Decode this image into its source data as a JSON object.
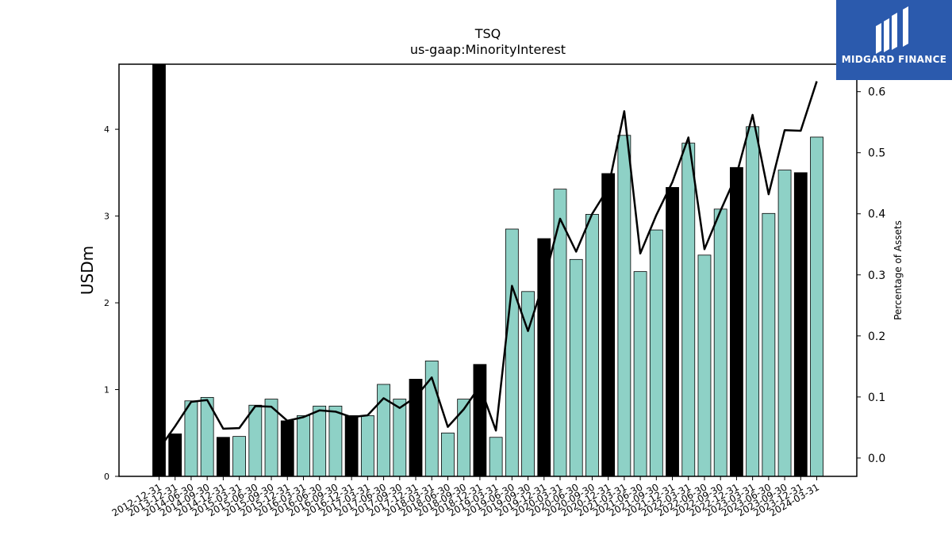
{
  "chart_data": {
    "type": "bar",
    "title": "TSQ",
    "subtitle": "us-gaap:MinorityInterest",
    "ylabel": "USDm",
    "y2label": "Percentage of Assets",
    "ylim": [
      0,
      4.75
    ],
    "y2lim": [
      -0.03,
      0.645
    ],
    "yticks": [
      0,
      1,
      2,
      3,
      4
    ],
    "y2ticks": [
      0.0,
      0.1,
      0.2,
      0.3,
      0.4,
      0.5,
      0.6
    ],
    "categories": [
      "2012-12-31",
      "2013-12-31",
      "2014-06-30",
      "2014-09-30",
      "2014-12-31",
      "2015-03-31",
      "2015-06-30",
      "2015-09-30",
      "2015-12-31",
      "2016-03-31",
      "2016-06-30",
      "2016-09-30",
      "2016-12-31",
      "2017-03-31",
      "2017-06-30",
      "2017-09-30",
      "2017-12-31",
      "2018-03-31",
      "2018-06-30",
      "2018-09-30",
      "2018-12-31",
      "2019-03-31",
      "2019-06-30",
      "2019-09-30",
      "2019-12-31",
      "2020-03-31",
      "2020-06-30",
      "2020-09-30",
      "2020-12-31",
      "2021-03-31",
      "2021-06-30",
      "2021-09-30",
      "2021-12-31",
      "2022-03-31",
      "2022-06-30",
      "2022-09-30",
      "2022-12-31",
      "2023-03-31",
      "2023-06-30",
      "2023-09-30",
      "2023-12-31",
      "2024-03-31"
    ],
    "series": [
      {
        "type": "bar",
        "values": [
          4.75,
          0.49,
          0.87,
          0.91,
          0.45,
          0.46,
          0.82,
          0.89,
          0.64,
          0.7,
          0.81,
          0.81,
          0.7,
          0.7,
          1.06,
          0.89,
          1.12,
          1.33,
          0.5,
          0.89,
          1.29,
          0.45,
          2.85,
          2.13,
          2.74,
          3.31,
          2.5,
          3.02,
          3.49,
          3.93,
          2.36,
          2.84,
          3.33,
          3.84,
          2.55,
          3.08,
          3.56,
          4.03,
          3.03,
          3.53,
          3.5,
          3.91
        ],
        "highlighted": [
          true,
          true,
          false,
          false,
          true,
          false,
          false,
          false,
          true,
          false,
          false,
          false,
          true,
          false,
          false,
          false,
          true,
          false,
          false,
          false,
          true,
          false,
          false,
          false,
          true,
          false,
          false,
          false,
          true,
          false,
          false,
          false,
          true,
          false,
          false,
          false,
          true,
          false,
          false,
          false,
          true,
          false
        ]
      },
      {
        "type": "line",
        "axis": "right",
        "values": [
          0.015,
          0.052,
          0.092,
          0.095,
          0.048,
          0.049,
          0.085,
          0.084,
          0.061,
          0.067,
          0.078,
          0.076,
          0.067,
          0.07,
          0.098,
          0.082,
          0.1,
          0.132,
          0.051,
          0.08,
          0.118,
          0.045,
          0.282,
          0.208,
          0.29,
          0.392,
          0.338,
          0.4,
          0.442,
          0.568,
          0.335,
          0.398,
          0.452,
          0.525,
          0.342,
          0.405,
          0.464,
          0.562,
          0.432,
          0.537,
          0.536,
          0.617
        ]
      }
    ],
    "colors": {
      "bar": "#8ed1c6",
      "bar_highlight": "#000000",
      "line": "#000000"
    },
    "grid": false,
    "legend": "none"
  },
  "logo": {
    "text": "MIDGARD FINANCE"
  }
}
